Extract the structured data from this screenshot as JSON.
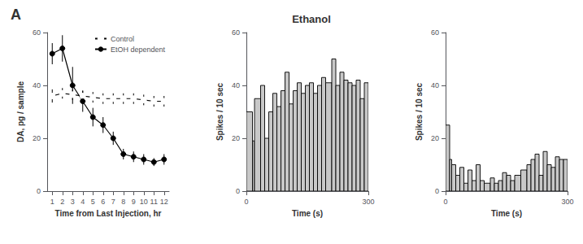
{
  "chart_data": [
    {
      "type": "line",
      "annotation": "A",
      "xlabel": "Time from Last Injection, hr",
      "ylabel": "DA, pg / sample",
      "x": [
        1,
        2,
        3,
        4,
        5,
        6,
        7,
        8,
        9,
        10,
        11,
        12
      ],
      "xlim": [
        0.5,
        12.5
      ],
      "xticks": [
        1,
        2,
        3,
        4,
        5,
        6,
        7,
        8,
        9,
        10,
        11,
        12
      ],
      "ylim": [
        0,
        60
      ],
      "yticks": [
        0,
        20,
        40,
        60
      ],
      "grid": false,
      "legend": "upper right",
      "series": [
        {
          "name": "Control",
          "color": "#000000",
          "marker": "open circle",
          "values": [
            36,
            37,
            36.5,
            36,
            35.5,
            35,
            35,
            35,
            35,
            34.5,
            34,
            34
          ],
          "yerr": [
            2.5,
            2.0,
            2.0,
            2.0,
            2.0,
            2.0,
            2.0,
            2.0,
            2.0,
            2.0,
            2.0,
            2.0
          ]
        },
        {
          "name": "EtOH dependent",
          "color": "#000000",
          "marker": "filled circle",
          "values": [
            52,
            54,
            40,
            34,
            28,
            25,
            20,
            14,
            13,
            12,
            11,
            12
          ],
          "yerr": [
            4.0,
            5.0,
            7.0,
            4.0,
            3.5,
            3.0,
            2.5,
            2.0,
            2.0,
            2.0,
            1.5,
            2.0
          ]
        }
      ]
    },
    {
      "type": "histogram",
      "title": "Ethanol",
      "xlabel": "Time (s)",
      "ylabel": "Spikes / 10 sec",
      "xlim": [
        0,
        300
      ],
      "xticks": [
        0,
        300
      ],
      "ylim": [
        0,
        60
      ],
      "yticks": [
        0,
        20,
        40,
        60
      ],
      "grid": false,
      "color": "#c8c8c8",
      "bins": [
        0,
        15,
        20,
        35,
        45,
        55,
        65,
        75,
        85,
        95,
        105,
        115,
        125,
        135,
        145,
        155,
        165,
        175,
        185,
        195,
        210,
        220,
        230,
        240,
        250,
        260,
        270,
        280,
        290,
        300
      ],
      "values": [
        30,
        19,
        35,
        40,
        20,
        30,
        37,
        32,
        38,
        45,
        33,
        38,
        41,
        37,
        40,
        41,
        37,
        40,
        43,
        41,
        50,
        40,
        45,
        42,
        41,
        40,
        42,
        35,
        41
      ]
    },
    {
      "type": "histogram",
      "xlabel": "Time (s)",
      "ylabel": "Spikes / 10 sec",
      "xlim": [
        0,
        300
      ],
      "xticks": [
        0,
        300
      ],
      "ylim": [
        0,
        60
      ],
      "yticks": [
        0,
        20,
        40,
        60
      ],
      "grid": false,
      "color": "#c8c8c8",
      "bins": [
        0,
        10,
        15,
        25,
        35,
        45,
        55,
        65,
        75,
        85,
        95,
        110,
        120,
        130,
        140,
        150,
        160,
        170,
        185,
        200,
        210,
        220,
        230,
        240,
        250,
        260,
        270,
        280,
        290,
        300
      ],
      "values": [
        25,
        12,
        10,
        6,
        9,
        3,
        8,
        4,
        10,
        4,
        3,
        5,
        3,
        4,
        7,
        6,
        4,
        6,
        8,
        10,
        12,
        14,
        6,
        15,
        10,
        9,
        13,
        12,
        12
      ]
    }
  ]
}
